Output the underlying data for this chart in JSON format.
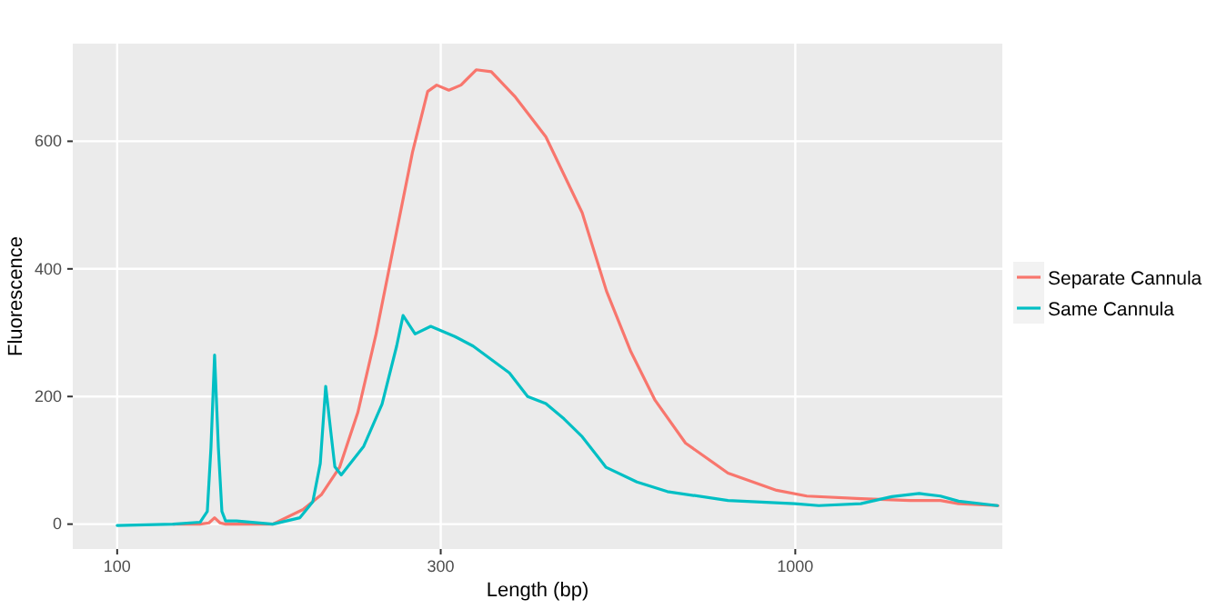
{
  "chart_data": {
    "type": "line",
    "xlabel": "Length (bp)",
    "ylabel": "Fluorescence",
    "log": "x",
    "xlim": [
      86,
      2020
    ],
    "xticks": [
      100,
      300,
      1000
    ],
    "ylim": [
      -39,
      753
    ],
    "yticks": [
      0,
      200,
      400,
      600
    ],
    "grid": true,
    "legend": "right",
    "series": [
      {
        "name": "Separate Cannula",
        "color": "#f8766d",
        "x": [
          121,
          132.5,
          136.6,
          139.2,
          141.8,
          144.5,
          169.6,
          188,
          200,
          212.8,
          226.4,
          240.9,
          256.3,
          272.6,
          287,
          295.9,
          308.4,
          321.3,
          338.4,
          356.2,
          386.7,
          428.7,
          485,
          526.8,
          572.3,
          621.3,
          688.9,
          795.7,
          938.5,
          1040,
          1251,
          1476,
          1637,
          1741,
          1990
        ],
        "values": [
          0,
          0,
          2,
          10,
          2,
          0,
          0,
          23,
          46,
          89,
          175,
          298,
          441,
          583,
          678,
          688,
          680,
          688,
          712,
          709,
          669,
          607,
          488,
          365,
          270,
          194,
          127,
          80,
          53,
          44,
          40,
          37,
          37,
          32,
          29
        ]
      },
      {
        "name": "Same Cannula",
        "color": "#00bfc4",
        "x": [
          100,
          121,
          132.5,
          135.8,
          137.5,
          139.2,
          141,
          142.7,
          144.5,
          150,
          169.6,
          186,
          194.3,
          199.3,
          203,
          206.8,
          209.4,
          214,
          231,
          245.8,
          258.3,
          264,
          275,
          290,
          314.8,
          334.9,
          378.8,
          403,
          428.7,
          456,
          485,
          526,
          584,
          647.6,
          795.7,
          998,
          1083,
          1249,
          1388,
          1523,
          1637,
          1741,
          1986
        ],
        "values": [
          -2,
          0,
          3,
          20,
          120,
          265,
          120,
          20,
          5,
          5,
          0,
          10,
          35,
          95,
          216,
          140,
          90,
          77,
          122,
          188,
          279,
          327,
          298,
          310,
          294,
          279,
          237,
          200,
          189,
          165,
          137,
          89,
          66,
          51,
          37,
          32,
          29,
          32,
          43,
          48,
          44,
          36,
          29
        ]
      }
    ]
  }
}
